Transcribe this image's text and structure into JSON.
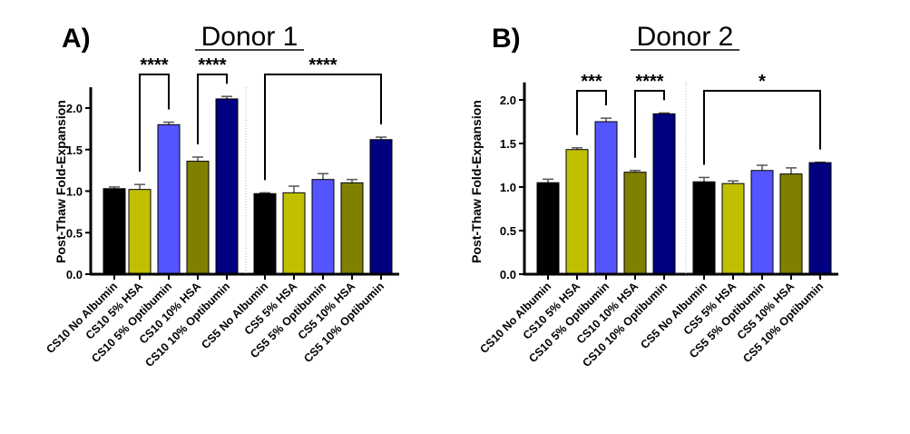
{
  "chart_data": [
    {
      "type": "bar",
      "panel_label": "A)",
      "title": "Donor 1",
      "ylabel": "Post-Thaw Fold-Expansion",
      "xlabel": "",
      "ylim": [
        0,
        2.25
      ],
      "yticks": [
        "0.0",
        "0.5",
        "1.0",
        "1.5",
        "2.0"
      ],
      "grid": false,
      "categories": [
        "CS10 No Albumin",
        "CS10 5% HSA",
        "CS10 5% Optibumin",
        "CS10 10% HSA",
        "CS10 10% Optibumin",
        "CS5 No Albumin",
        "CS5 5% HSA",
        "CS5 5% Optibumin",
        "CS5 10% HSA",
        "CS5 10% Optibumin"
      ],
      "values": [
        1.03,
        1.02,
        1.8,
        1.36,
        2.11,
        0.97,
        0.98,
        1.14,
        1.1,
        1.62
      ],
      "errors": [
        0.02,
        0.06,
        0.03,
        0.05,
        0.03,
        0.01,
        0.08,
        0.07,
        0.04,
        0.03
      ],
      "colors": [
        "#000000",
        "#c0c000",
        "#5555ff",
        "#808000",
        "#000080",
        "#000000",
        "#c0c000",
        "#5555ff",
        "#808000",
        "#000080"
      ],
      "significance": [
        {
          "from": 1,
          "to": 2,
          "label": "****"
        },
        {
          "from": 3,
          "to": 4,
          "label": "****"
        },
        {
          "from": 5,
          "to": 9,
          "label": "****"
        }
      ]
    },
    {
      "type": "bar",
      "panel_label": "B)",
      "title": "Donor 2",
      "ylabel": "Post-Thaw Fold-Expansion",
      "xlabel": "",
      "ylim": [
        0,
        2.2
      ],
      "yticks": [
        "0.0",
        "0.5",
        "1.0",
        "1.5",
        "2.0"
      ],
      "grid": false,
      "categories": [
        "CS10 No Albumin",
        "CS10 5% HSA",
        "CS10 5% Optibumin",
        "CS10 10% HSA",
        "CS10 10% Optibumin",
        "CS5 No Albumin",
        "CS5 5% HSA",
        "CS5 5% Optibumin",
        "CS5 10% HSA",
        "CS5 10% Optibumin"
      ],
      "values": [
        1.05,
        1.43,
        1.75,
        1.17,
        1.84,
        1.06,
        1.04,
        1.19,
        1.15,
        1.28
      ],
      "errors": [
        0.04,
        0.02,
        0.04,
        0.02,
        0.01,
        0.05,
        0.03,
        0.06,
        0.07,
        0.005
      ],
      "colors": [
        "#000000",
        "#c0c000",
        "#5555ff",
        "#808000",
        "#000080",
        "#000000",
        "#c0c000",
        "#5555ff",
        "#808000",
        "#000080"
      ],
      "significance": [
        {
          "from": 1,
          "to": 2,
          "label": "***"
        },
        {
          "from": 3,
          "to": 4,
          "label": "****"
        },
        {
          "from": 5,
          "to": 9,
          "label": "*"
        }
      ]
    }
  ]
}
